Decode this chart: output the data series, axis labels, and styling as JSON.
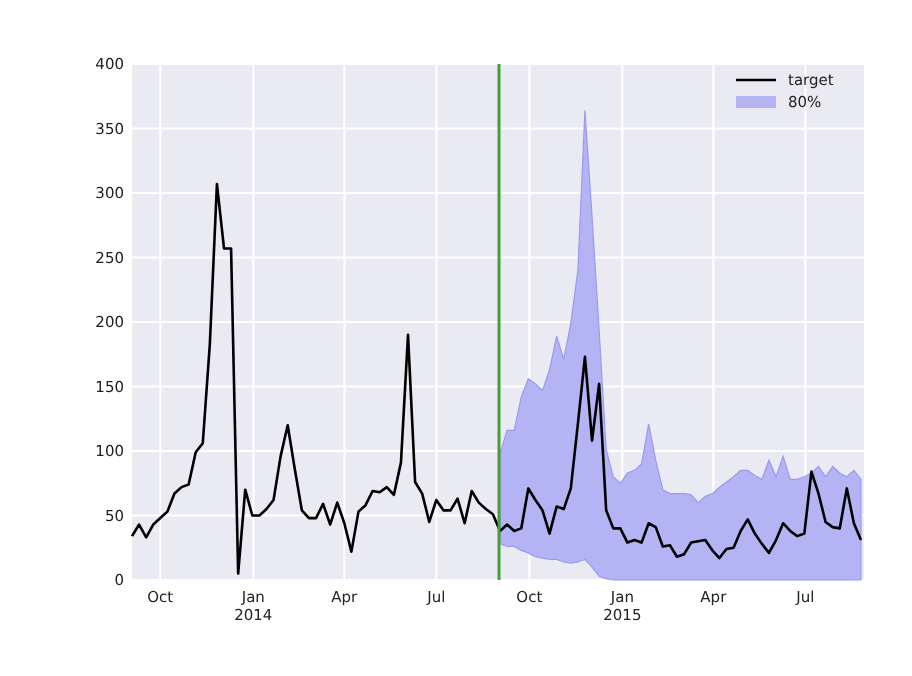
{
  "chart_data": {
    "type": "line",
    "xlim": [
      "2013-09-03",
      "2015-08-28"
    ],
    "ylim": [
      0,
      400
    ],
    "yticks": [
      0,
      50,
      100,
      150,
      200,
      250,
      300,
      350,
      400
    ],
    "xticks": [
      {
        "value": "2013-10-01",
        "label": "Oct"
      },
      {
        "value": "2014-01-01",
        "label": "Jan\n2014"
      },
      {
        "value": "2014-04-01",
        "label": "Apr"
      },
      {
        "value": "2014-07-01",
        "label": "Jul"
      },
      {
        "value": "2014-10-01",
        "label": "Oct"
      },
      {
        "value": "2015-01-01",
        "label": "Jan\n2015"
      },
      {
        "value": "2015-04-01",
        "label": "Apr"
      },
      {
        "value": "2015-07-01",
        "label": "Jul"
      }
    ],
    "grid": true,
    "legend": "top right",
    "ref_lines": [
      {
        "axis": "x",
        "value": "2014-09-01",
        "color": "#4a9c3a"
      }
    ],
    "series": [
      {
        "name": "target",
        "color": "#000000",
        "x": [
          "2013-09-03",
          "2013-09-10",
          "2013-09-17",
          "2013-09-24",
          "2013-10-01",
          "2013-10-08",
          "2013-10-15",
          "2013-10-22",
          "2013-10-29",
          "2013-11-05",
          "2013-11-12",
          "2013-11-19",
          "2013-11-26",
          "2013-12-03",
          "2013-12-10",
          "2013-12-17",
          "2013-12-24",
          "2013-12-31",
          "2014-01-07",
          "2014-01-14",
          "2014-01-21",
          "2014-01-28",
          "2014-02-04",
          "2014-02-11",
          "2014-02-18",
          "2014-02-25",
          "2014-03-04",
          "2014-03-11",
          "2014-03-18",
          "2014-03-25",
          "2014-04-01",
          "2014-04-08",
          "2014-04-15",
          "2014-04-22",
          "2014-04-29",
          "2014-05-06",
          "2014-05-13",
          "2014-05-20",
          "2014-05-27",
          "2014-06-03",
          "2014-06-10",
          "2014-06-17",
          "2014-06-24",
          "2014-07-01",
          "2014-07-08",
          "2014-07-15",
          "2014-07-22",
          "2014-07-29",
          "2014-08-05",
          "2014-08-12",
          "2014-08-19",
          "2014-08-26",
          "2014-09-02",
          "2014-09-09",
          "2014-09-16",
          "2014-09-23",
          "2014-09-30",
          "2014-10-07",
          "2014-10-14",
          "2014-10-21",
          "2014-10-28",
          "2014-11-04",
          "2014-11-11",
          "2014-11-18",
          "2014-11-25",
          "2014-12-02",
          "2014-12-09",
          "2014-12-16",
          "2014-12-23",
          "2014-12-30",
          "2015-01-06",
          "2015-01-13",
          "2015-01-20",
          "2015-01-27",
          "2015-02-03",
          "2015-02-10",
          "2015-02-17",
          "2015-02-24",
          "2015-03-03",
          "2015-03-10",
          "2015-03-17",
          "2015-03-24",
          "2015-03-31",
          "2015-04-07",
          "2015-04-14",
          "2015-04-21",
          "2015-04-28",
          "2015-05-05",
          "2015-05-12",
          "2015-05-19",
          "2015-05-26",
          "2015-06-02",
          "2015-06-09",
          "2015-06-16",
          "2015-06-23",
          "2015-06-30",
          "2015-07-07",
          "2015-07-14",
          "2015-07-21",
          "2015-07-28",
          "2015-08-04",
          "2015-08-11",
          "2015-08-18",
          "2015-08-25"
        ],
        "values": [
          34,
          43,
          33,
          43,
          48,
          53,
          67,
          72,
          74,
          99,
          106,
          183,
          307,
          257,
          257,
          5,
          70,
          50,
          50,
          55,
          62,
          96,
          120,
          86,
          54,
          48,
          48,
          59,
          43,
          60,
          44,
          22,
          53,
          58,
          69,
          68,
          72,
          66,
          91,
          190,
          76,
          67,
          45,
          62,
          54,
          54,
          63,
          44,
          69,
          60,
          55,
          51,
          38,
          43,
          38,
          40,
          71,
          62,
          54,
          36,
          57,
          55,
          71,
          121,
          173,
          108,
          152,
          54,
          40,
          40,
          29,
          31,
          29,
          44,
          41,
          26,
          27,
          18,
          20,
          29,
          30,
          31,
          23,
          17,
          24,
          25,
          38,
          47,
          36,
          28,
          21,
          31,
          44,
          38,
          34,
          36,
          84,
          67,
          45,
          41,
          40,
          71,
          44,
          31
        ]
      },
      {
        "name": "80%",
        "type": "area",
        "color": "#b4b4f4",
        "x": [
          "2014-09-02",
          "2014-09-09",
          "2014-09-16",
          "2014-09-23",
          "2014-09-30",
          "2014-10-07",
          "2014-10-14",
          "2014-10-21",
          "2014-10-28",
          "2014-11-04",
          "2014-11-11",
          "2014-11-18",
          "2014-11-25",
          "2014-12-02",
          "2014-12-09",
          "2014-12-16",
          "2014-12-23",
          "2014-12-30",
          "2015-01-06",
          "2015-01-13",
          "2015-01-20",
          "2015-01-27",
          "2015-02-03",
          "2015-02-10",
          "2015-02-17",
          "2015-02-24",
          "2015-03-03",
          "2015-03-10",
          "2015-03-17",
          "2015-03-24",
          "2015-03-31",
          "2015-04-07",
          "2015-04-14",
          "2015-04-21",
          "2015-04-28",
          "2015-05-05",
          "2015-05-12",
          "2015-05-19",
          "2015-05-26",
          "2015-06-02",
          "2015-06-09",
          "2015-06-16",
          "2015-06-23",
          "2015-06-30",
          "2015-07-07",
          "2015-07-14",
          "2015-07-21",
          "2015-07-28",
          "2015-08-04",
          "2015-08-11",
          "2015-08-18",
          "2015-08-25"
        ],
        "values": [
          null,
          null,
          null,
          null,
          null,
          null,
          null,
          null,
          null,
          null,
          null,
          null,
          null,
          null,
          null,
          null,
          null,
          null,
          null,
          null,
          null,
          null,
          null,
          null,
          null,
          null,
          null,
          null,
          null,
          null,
          null,
          null,
          null,
          null,
          null,
          null,
          null,
          null,
          null,
          null,
          null,
          null,
          null,
          null,
          null,
          null,
          null,
          null,
          null,
          null,
          null,
          null
        ],
        "lower": [
          28,
          26,
          26,
          23,
          21,
          18,
          17,
          16,
          16,
          14,
          13,
          14,
          16,
          10,
          3,
          1,
          0,
          0,
          0,
          0,
          0,
          0,
          0,
          0,
          0,
          0,
          0,
          0,
          0,
          0,
          0,
          0,
          0,
          0,
          0,
          0,
          0,
          0,
          0,
          0,
          0,
          0,
          0,
          0,
          0,
          0,
          0,
          0,
          0,
          0,
          0,
          0
        ],
        "upper": [
          98,
          116,
          116,
          142,
          156,
          152,
          147,
          163,
          189,
          171,
          199,
          240,
          364,
          282,
          194,
          101,
          80,
          75,
          83,
          85,
          90,
          121,
          93,
          70,
          67,
          67,
          67,
          66,
          60,
          65,
          67,
          72,
          76,
          80,
          85,
          85,
          81,
          78,
          93,
          80,
          96,
          78,
          78,
          80,
          83,
          88,
          80,
          88,
          83,
          80,
          85,
          78
        ]
      }
    ]
  }
}
